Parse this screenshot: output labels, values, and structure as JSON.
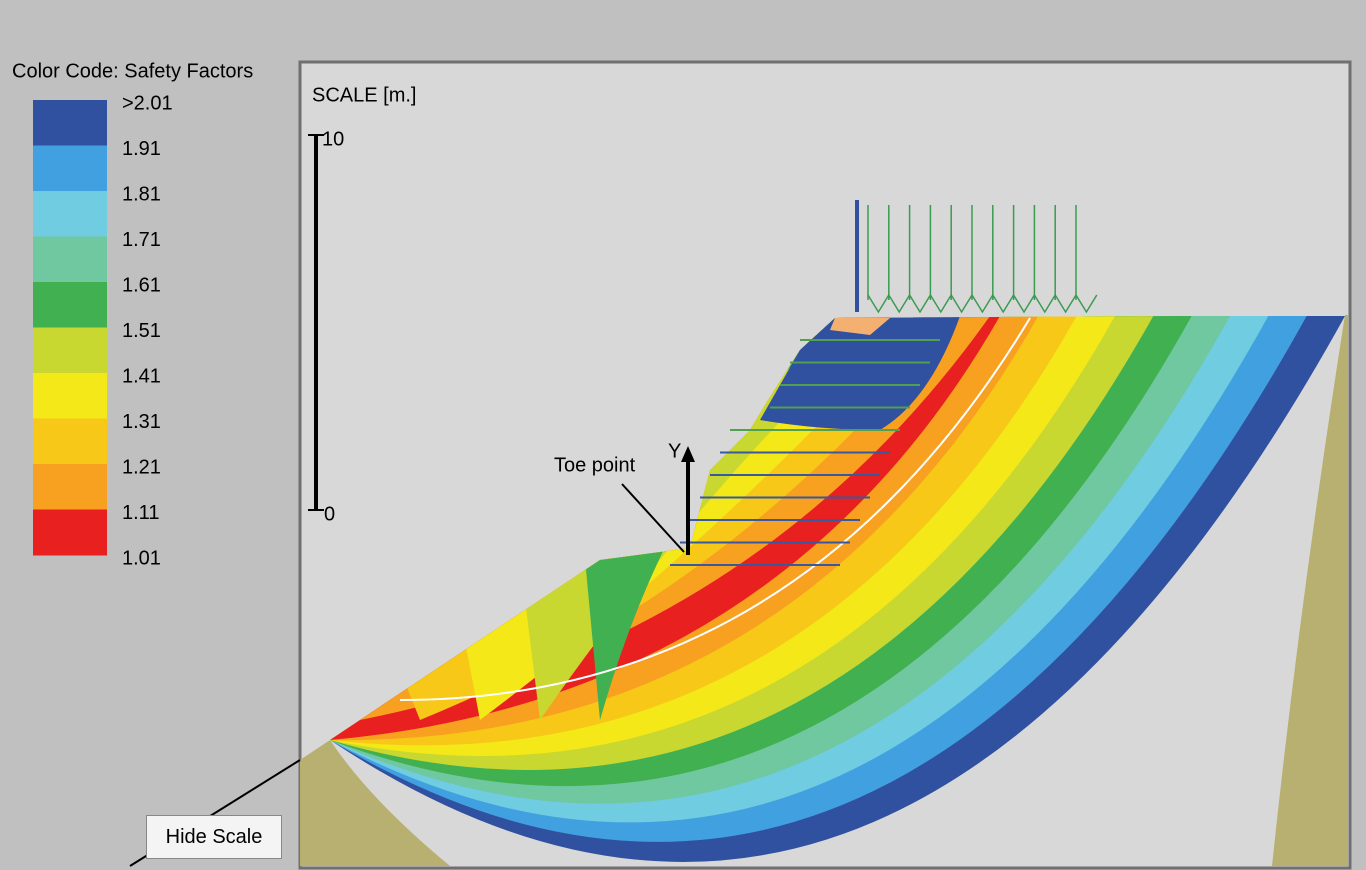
{
  "legend": {
    "title": "Color Code: Safety Factors",
    "labels": [
      ">2.01",
      "1.91",
      "1.81",
      "1.71",
      "1.61",
      "1.51",
      "1.41",
      "1.31",
      "1.21",
      "1.11",
      "1.01"
    ],
    "colors": [
      "#3050a0",
      "#40a0e0",
      "#70cce0",
      "#70c8a0",
      "#40b050",
      "#c8d830",
      "#f4e818",
      "#f8c818",
      "#f8a020",
      "#e82020"
    ]
  },
  "plot": {
    "scale_title": "SCALE [m.]",
    "scale_top": "10",
    "scale_bottom": "0",
    "axis_label": "Y",
    "annotation": "Toe point"
  },
  "button": "Hide Scale"
}
